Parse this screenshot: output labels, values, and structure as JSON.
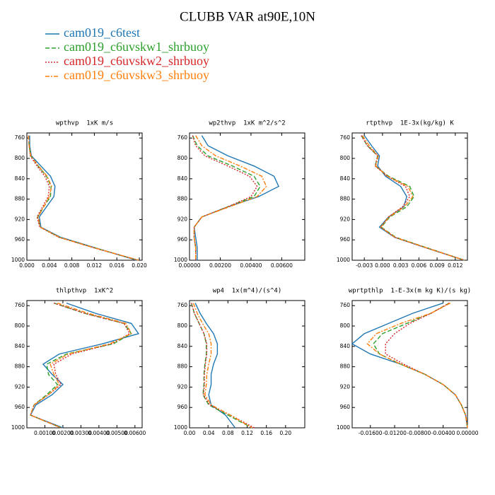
{
  "title": "CLUBB VAR at90E,10N",
  "legend": [
    {
      "name": "cam019_c6test",
      "color": "#1f77b4"
    },
    {
      "name": "cam019_c6uvskw1_shrbuoy",
      "color": "#2ca02c"
    },
    {
      "name": "cam019_c6uvskw2_shrbuoy",
      "color": "#d62728"
    },
    {
      "name": "cam019_c6uvskw3_shrbuoy",
      "color": "#ff7f0e"
    }
  ],
  "chart_data": [
    {
      "type": "line",
      "title": "wpthvp  1xK m/s",
      "y": [
        755,
        775,
        795,
        815,
        835,
        855,
        875,
        895,
        915,
        935,
        955,
        975,
        1000
      ],
      "ylim": [
        1000,
        750
      ],
      "yticks": [
        760,
        800,
        840,
        880,
        920,
        960,
        1000
      ],
      "xlim": [
        0,
        0.0205
      ],
      "xticks": [
        {
          "value": 0,
          "label": "0.000"
        },
        0.004,
        0.008,
        0.012,
        0.016,
        {
          "value": 0.02,
          "label": "0.020"
        }
      ],
      "series": [
        {
          "values": [
            0.0005,
            0.0005,
            0.0008,
            0.0025,
            0.0042,
            0.005,
            0.0048,
            0.0035,
            0.0022,
            0.0025,
            0.006,
            0.012,
            0.0195
          ]
        },
        {
          "values": [
            0.0003,
            0.0004,
            0.0007,
            0.002,
            0.0035,
            0.0043,
            0.0042,
            0.003,
            0.0019,
            0.0024,
            0.0058,
            0.0118,
            0.0198
          ]
        },
        {
          "values": [
            0.0003,
            0.0004,
            0.0006,
            0.0018,
            0.0032,
            0.004,
            0.0038,
            0.0028,
            0.0018,
            0.0023,
            0.0057,
            0.0117,
            0.0198
          ]
        },
        {
          "values": [
            0.0003,
            0.0004,
            0.0007,
            0.0021,
            0.0036,
            0.0044,
            0.004,
            0.003,
            0.002,
            0.0024,
            0.0058,
            0.0118,
            0.0199
          ]
        }
      ]
    },
    {
      "type": "line",
      "title": "wp2thvp  1xK m^2/s^2",
      "y": [
        755,
        775,
        795,
        815,
        835,
        855,
        875,
        895,
        915,
        935,
        955,
        975,
        1000
      ],
      "ylim": [
        1000,
        750
      ],
      "yticks": [
        760,
        800,
        840,
        880,
        920,
        960,
        1000
      ],
      "xlim": [
        0,
        0.0075
      ],
      "xticks": [
        {
          "value": 0,
          "label": "0.00000"
        },
        {
          "value": 0.002,
          "label": "0.00200"
        },
        {
          "value": 0.004,
          "label": "0.00400"
        },
        {
          "value": 0.006,
          "label": "0.00600"
        }
      ],
      "series": [
        {
          "values": [
            0.0008,
            0.0012,
            0.0025,
            0.0042,
            0.0055,
            0.0058,
            0.0045,
            0.0025,
            0.0008,
            0.0003,
            0.0004,
            0.0005,
            0.0005
          ]
        },
        {
          "values": [
            0.0002,
            0.0005,
            0.0012,
            0.0028,
            0.0042,
            0.0046,
            0.0042,
            0.0025,
            0.0008,
            0.0003,
            0.0003,
            0.0004,
            0.0004
          ]
        },
        {
          "values": [
            0.0002,
            0.0004,
            0.001,
            0.0025,
            0.0039,
            0.0044,
            0.004,
            0.0025,
            0.0008,
            0.0003,
            0.0003,
            0.0004,
            0.0004
          ]
        },
        {
          "values": [
            0.0004,
            0.0008,
            0.0017,
            0.0033,
            0.0047,
            0.005,
            0.0044,
            0.0026,
            0.0008,
            0.0003,
            0.0003,
            0.0004,
            0.0004
          ]
        }
      ]
    },
    {
      "type": "line",
      "title": "rtpthvp  1E-3x(kg/kg) K",
      "y": [
        755,
        775,
        795,
        815,
        835,
        855,
        875,
        895,
        915,
        935,
        955,
        975,
        1000
      ],
      "ylim": [
        1000,
        750
      ],
      "yticks": [
        760,
        800,
        840,
        880,
        920,
        960,
        1000
      ],
      "xlim": [
        -0.005,
        0.014
      ],
      "xticks": [
        -0.003,
        {
          "value": 0,
          "label": "0.000"
        },
        0.003,
        0.006,
        0.009,
        0.012
      ],
      "series": [
        {
          "values": [
            -0.003,
            -0.0018,
            -0.0005,
            -0.0008,
            0.0005,
            0.003,
            0.004,
            0.0035,
            0.001,
            -0.0005,
            0.002,
            0.007,
            0.0135
          ]
        },
        {
          "values": [
            -0.0035,
            -0.0025,
            -0.0008,
            -0.0012,
            0.001,
            0.0045,
            0.0052,
            0.004,
            0.0012,
            -0.0002,
            0.0022,
            0.0072,
            0.0135
          ]
        },
        {
          "values": [
            -0.0035,
            -0.0025,
            -0.0008,
            -0.0012,
            0.0008,
            0.0038,
            0.0045,
            0.0033,
            0.001,
            -0.0003,
            0.002,
            0.007,
            0.0135
          ]
        },
        {
          "values": [
            -0.0033,
            -0.0022,
            -0.0007,
            -0.0011,
            0.0008,
            0.0042,
            0.005,
            0.0036,
            0.0011,
            -0.0003,
            0.0021,
            0.0071,
            0.0135
          ]
        }
      ]
    },
    {
      "type": "line",
      "title": "thlpthvp  1xK^2",
      "y": [
        755,
        775,
        795,
        815,
        835,
        855,
        875,
        895,
        915,
        935,
        955,
        975,
        1000
      ],
      "ylim": [
        1000,
        750
      ],
      "yticks": [
        760,
        800,
        840,
        880,
        920,
        960,
        1000
      ],
      "xlim": [
        0,
        0.0064
      ],
      "xticks": [
        {
          "value": 0.001,
          "label": "0.00100"
        },
        {
          "value": 0.002,
          "label": "0.00200"
        },
        {
          "value": 0.003,
          "label": "0.00300"
        },
        {
          "value": 0.004,
          "label": "0.00400"
        },
        {
          "value": 0.005,
          "label": "0.00500"
        },
        {
          "value": 0.006,
          "label": "0.00600"
        }
      ],
      "series": [
        {
          "values": [
            0.0022,
            0.0038,
            0.0058,
            0.0062,
            0.0042,
            0.0018,
            0.0009,
            0.0014,
            0.002,
            0.0014,
            0.0005,
            0.0002,
            0.002
          ]
        },
        {
          "values": [
            0.0015,
            0.0032,
            0.0054,
            0.0058,
            0.0048,
            0.0022,
            0.0011,
            0.0012,
            0.0017,
            0.0011,
            0.0004,
            0.0002,
            0.0019
          ]
        },
        {
          "values": [
            0.0015,
            0.0032,
            0.0054,
            0.0057,
            0.0047,
            0.0025,
            0.0015,
            0.0016,
            0.0019,
            0.0012,
            0.0004,
            0.0002,
            0.0019
          ]
        },
        {
          "values": [
            0.0017,
            0.0034,
            0.0055,
            0.0058,
            0.0046,
            0.0023,
            0.0013,
            0.0015,
            0.0018,
            0.0012,
            0.0004,
            0.0002,
            0.0019
          ]
        }
      ]
    },
    {
      "type": "line",
      "title": "wp4  1x(m^4)/(s^4)",
      "y": [
        755,
        775,
        795,
        815,
        835,
        855,
        875,
        895,
        915,
        935,
        955,
        975,
        1000
      ],
      "ylim": [
        1000,
        750
      ],
      "yticks": [
        760,
        800,
        840,
        880,
        920,
        960,
        1000
      ],
      "xlim": [
        0,
        0.24
      ],
      "xticks": [
        {
          "value": 0,
          "label": "0.00"
        },
        0.04,
        0.08,
        0.12,
        0.16,
        {
          "value": 0.2,
          "label": "0.20"
        }
      ],
      "series": [
        {
          "values": [
            0.012,
            0.022,
            0.035,
            0.05,
            0.058,
            0.058,
            0.05,
            0.045,
            0.045,
            0.04,
            0.045,
            0.075,
            0.095
          ]
        },
        {
          "values": [
            0.004,
            0.01,
            0.02,
            0.03,
            0.035,
            0.035,
            0.032,
            0.03,
            0.03,
            0.028,
            0.04,
            0.08,
            0.13
          ]
        },
        {
          "values": [
            0.004,
            0.01,
            0.02,
            0.03,
            0.036,
            0.036,
            0.033,
            0.031,
            0.031,
            0.029,
            0.042,
            0.085,
            0.135
          ]
        },
        {
          "values": [
            0.008,
            0.016,
            0.027,
            0.04,
            0.045,
            0.045,
            0.04,
            0.036,
            0.035,
            0.032,
            0.045,
            0.085,
            0.13
          ]
        }
      ]
    },
    {
      "type": "line",
      "title": "wprtpthlp  1-E-3x(m kg K)/(s kg)",
      "y": [
        755,
        775,
        795,
        815,
        835,
        855,
        875,
        895,
        915,
        935,
        955,
        975,
        1000
      ],
      "ylim": [
        1000,
        750
      ],
      "yticks": [
        760,
        800,
        840,
        880,
        920,
        960,
        1000
      ],
      "xlim": [
        -0.019,
        0
      ],
      "xticks": [
        {
          "value": -0.016,
          "label": "-0.01600"
        },
        {
          "value": -0.012,
          "label": "-0.01200"
        },
        {
          "value": -0.008,
          "label": "-0.00800"
        },
        {
          "value": -0.004,
          "label": "-0.00400"
        },
        {
          "value": 0,
          "label": "0.00000"
        }
      ],
      "series": [
        {
          "values": [
            -0.004,
            -0.009,
            -0.013,
            -0.017,
            -0.019,
            -0.016,
            -0.011,
            -0.007,
            -0.004,
            -0.002,
            -0.001,
            -0.0003,
            0
          ]
        },
        {
          "values": [
            -0.003,
            -0.006,
            -0.01,
            -0.014,
            -0.0155,
            -0.0145,
            -0.011,
            -0.007,
            -0.004,
            -0.002,
            -0.001,
            -0.0003,
            0
          ]
        },
        {
          "values": [
            -0.003,
            -0.006,
            -0.0095,
            -0.012,
            -0.0135,
            -0.0135,
            -0.0105,
            -0.007,
            -0.004,
            -0.002,
            -0.001,
            -0.0003,
            0
          ]
        },
        {
          "values": [
            -0.0028,
            -0.006,
            -0.011,
            -0.015,
            -0.0165,
            -0.0145,
            -0.011,
            -0.007,
            -0.004,
            -0.002,
            -0.001,
            -0.0003,
            0
          ]
        }
      ]
    }
  ]
}
